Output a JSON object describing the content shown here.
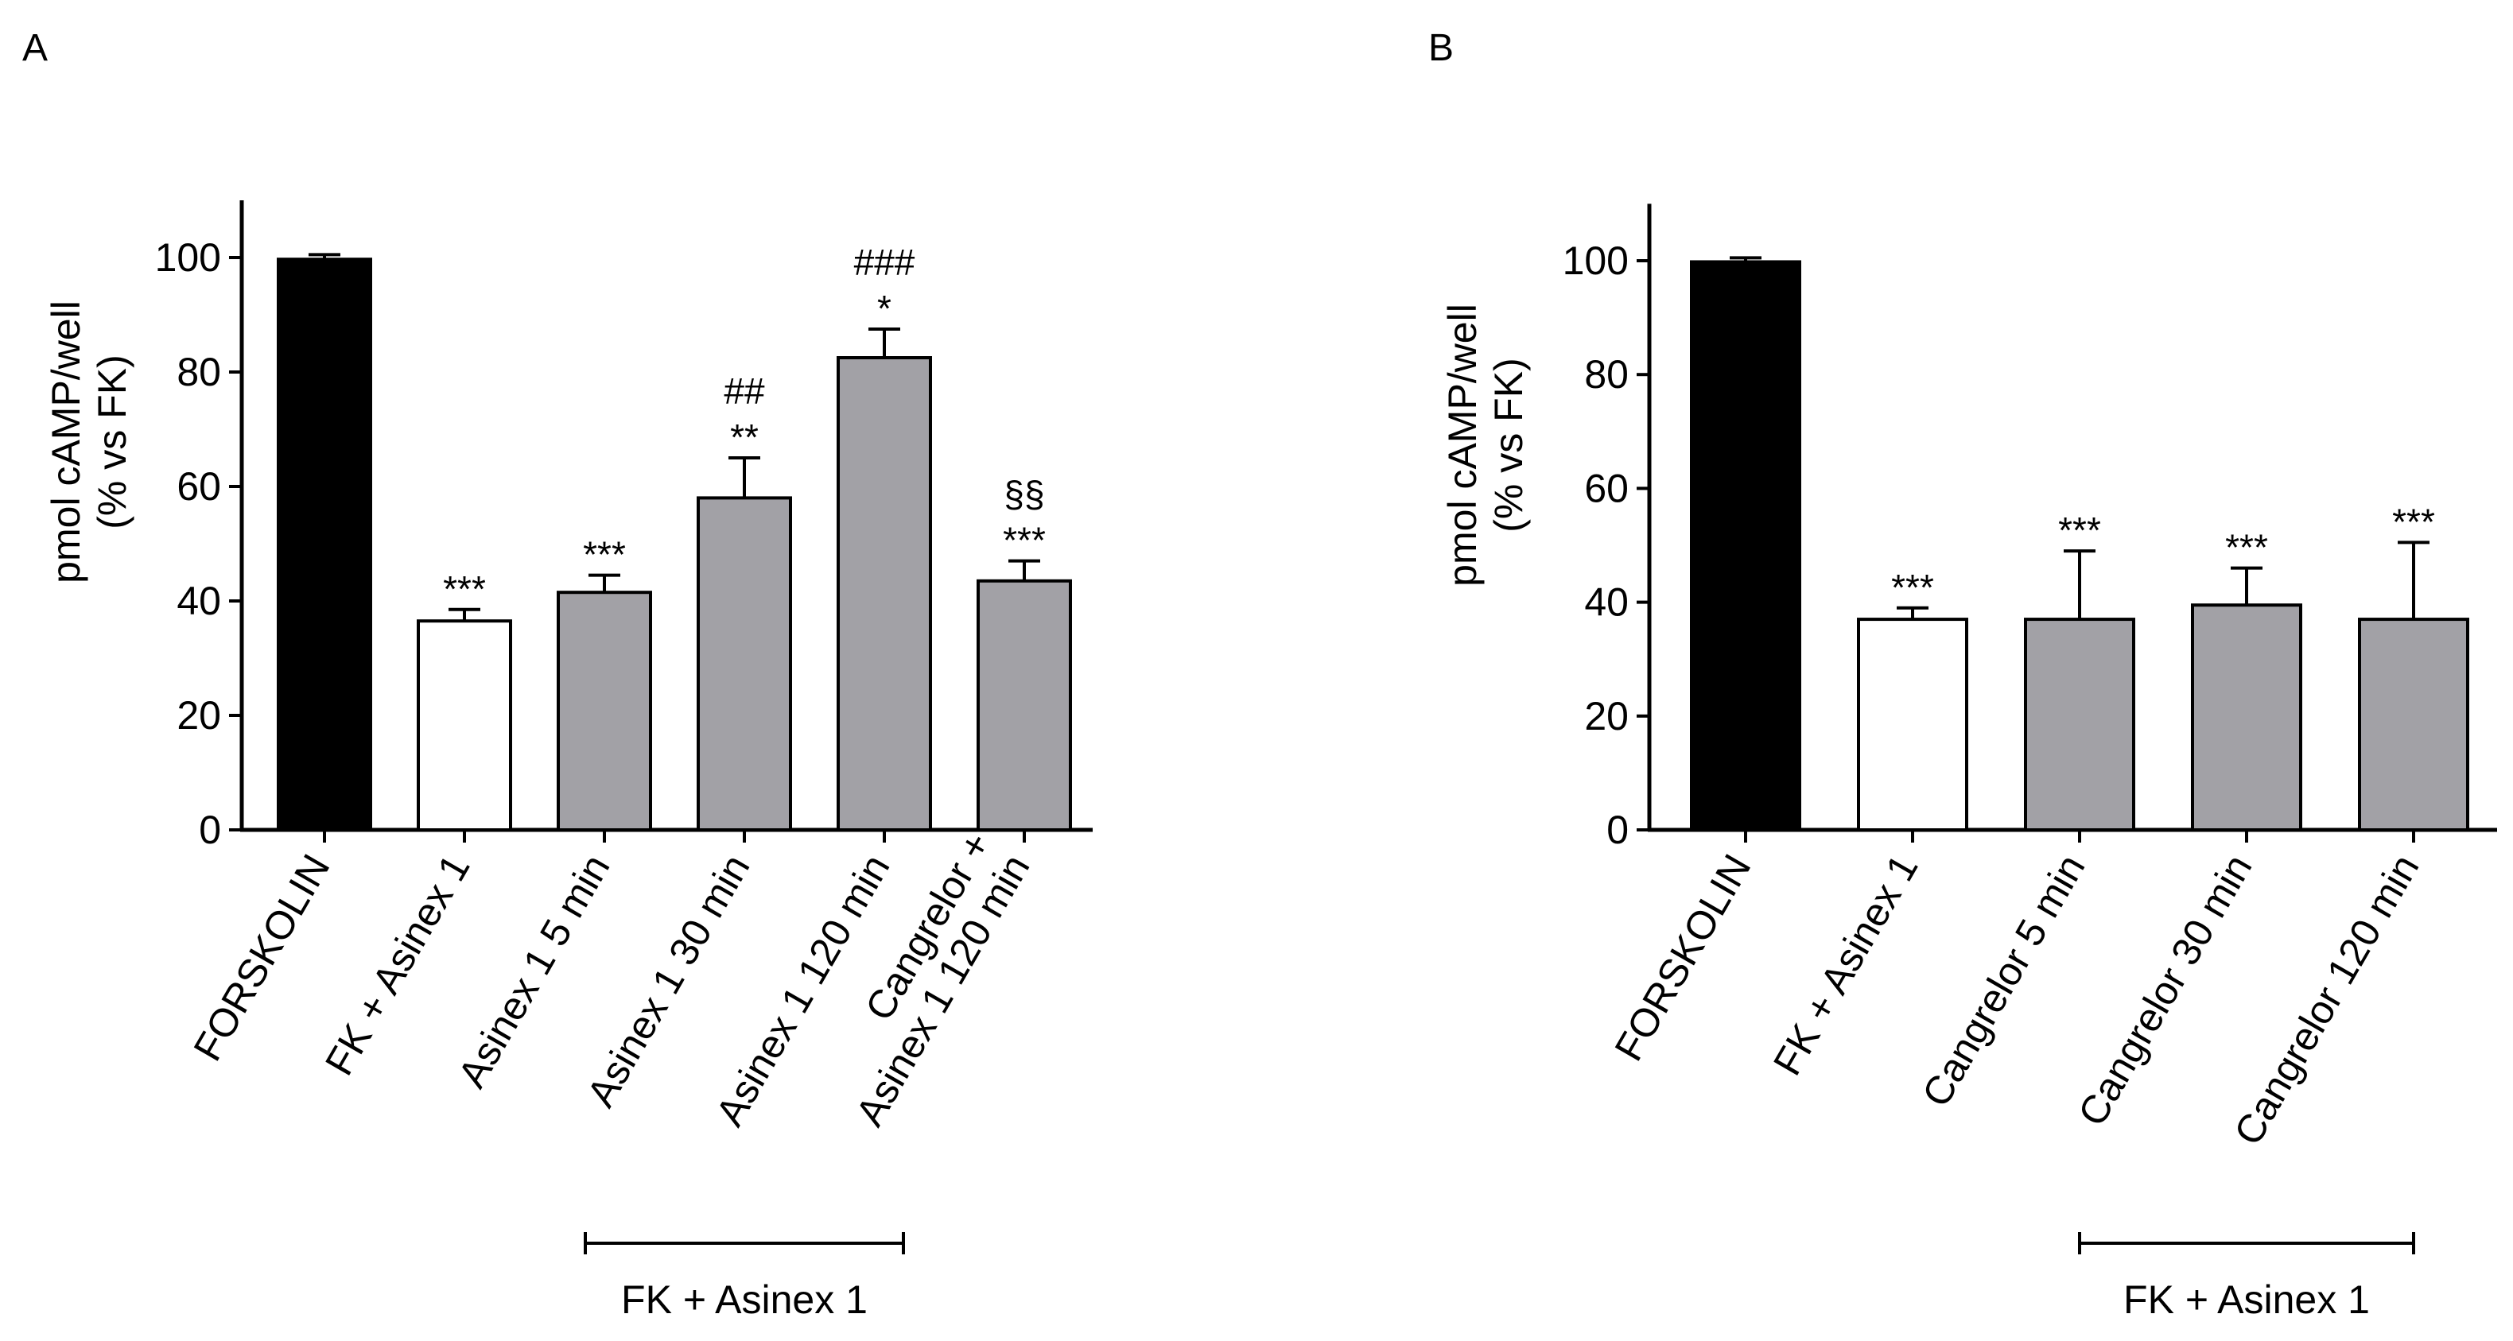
{
  "chart_data": [
    {
      "type": "bar",
      "panel": "A",
      "ylabel_line1": "pmol cAMP/well",
      "ylabel_line2": "(% vs FK)",
      "ylim": [
        0,
        110
      ],
      "yticks": [
        0,
        20,
        40,
        60,
        80,
        100
      ],
      "categories": [
        {
          "label_lines": [
            "FORSKOLIN"
          ],
          "value": 99.7,
          "error": 0.8,
          "fill": "#000000",
          "sig_lines": []
        },
        {
          "label_lines": [
            "FK + Asinex 1"
          ],
          "value": 36.5,
          "error": 2.0,
          "fill": "#ffffff",
          "sig_lines": [
            "***"
          ]
        },
        {
          "label_lines": [
            "Asinex 1 5 min"
          ],
          "value": 41.5,
          "error": 3.0,
          "fill": "#a2a1a6",
          "sig_lines": [
            "***"
          ]
        },
        {
          "label_lines": [
            "Asinex 1 30 min"
          ],
          "value": 58.0,
          "error": 7.0,
          "fill": "#a2a1a6",
          "sig_lines": [
            "##",
            "**"
          ]
        },
        {
          "label_lines": [
            "Asinex 1 120 min"
          ],
          "value": 82.5,
          "error": 5.0,
          "fill": "#a2a1a6",
          "sig_lines": [
            "###",
            "*"
          ]
        },
        {
          "label_lines": [
            "Cangrelor +",
            "Asinex 1 120 min"
          ],
          "value": 43.5,
          "error": 3.5,
          "fill": "#a2a1a6",
          "sig_lines": [
            "§§",
            "***"
          ]
        }
      ],
      "group_bracket": {
        "label": "FK + Asinex 1",
        "from_index": 2,
        "to_index": 4
      }
    },
    {
      "type": "bar",
      "panel": "B",
      "ylabel_line1": "pmol cAMP/well",
      "ylabel_line2": "(% vs FK)",
      "ylim": [
        0,
        110
      ],
      "yticks": [
        0,
        20,
        40,
        60,
        80,
        100
      ],
      "categories": [
        {
          "label_lines": [
            "FORSKOLIN"
          ],
          "value": 99.8,
          "error": 0.7,
          "fill": "#000000",
          "sig_lines": []
        },
        {
          "label_lines": [
            "FK + Asinex 1"
          ],
          "value": 37.0,
          "error": 2.0,
          "fill": "#ffffff",
          "sig_lines": [
            "***"
          ]
        },
        {
          "label_lines": [
            "Cangrelor 5 min"
          ],
          "value": 37.0,
          "error": 12.0,
          "fill": "#a2a1a6",
          "sig_lines": [
            "***"
          ]
        },
        {
          "label_lines": [
            "Cangrelor 30 min"
          ],
          "value": 39.5,
          "error": 6.5,
          "fill": "#a2a1a6",
          "sig_lines": [
            "***"
          ]
        },
        {
          "label_lines": [
            "Cangrelor 120 min"
          ],
          "value": 37.0,
          "error": 13.5,
          "fill": "#a2a1a6",
          "sig_lines": [
            "***"
          ]
        }
      ],
      "group_bracket": {
        "label": "FK + Asinex 1",
        "from_index": 2,
        "to_index": 4
      }
    }
  ]
}
